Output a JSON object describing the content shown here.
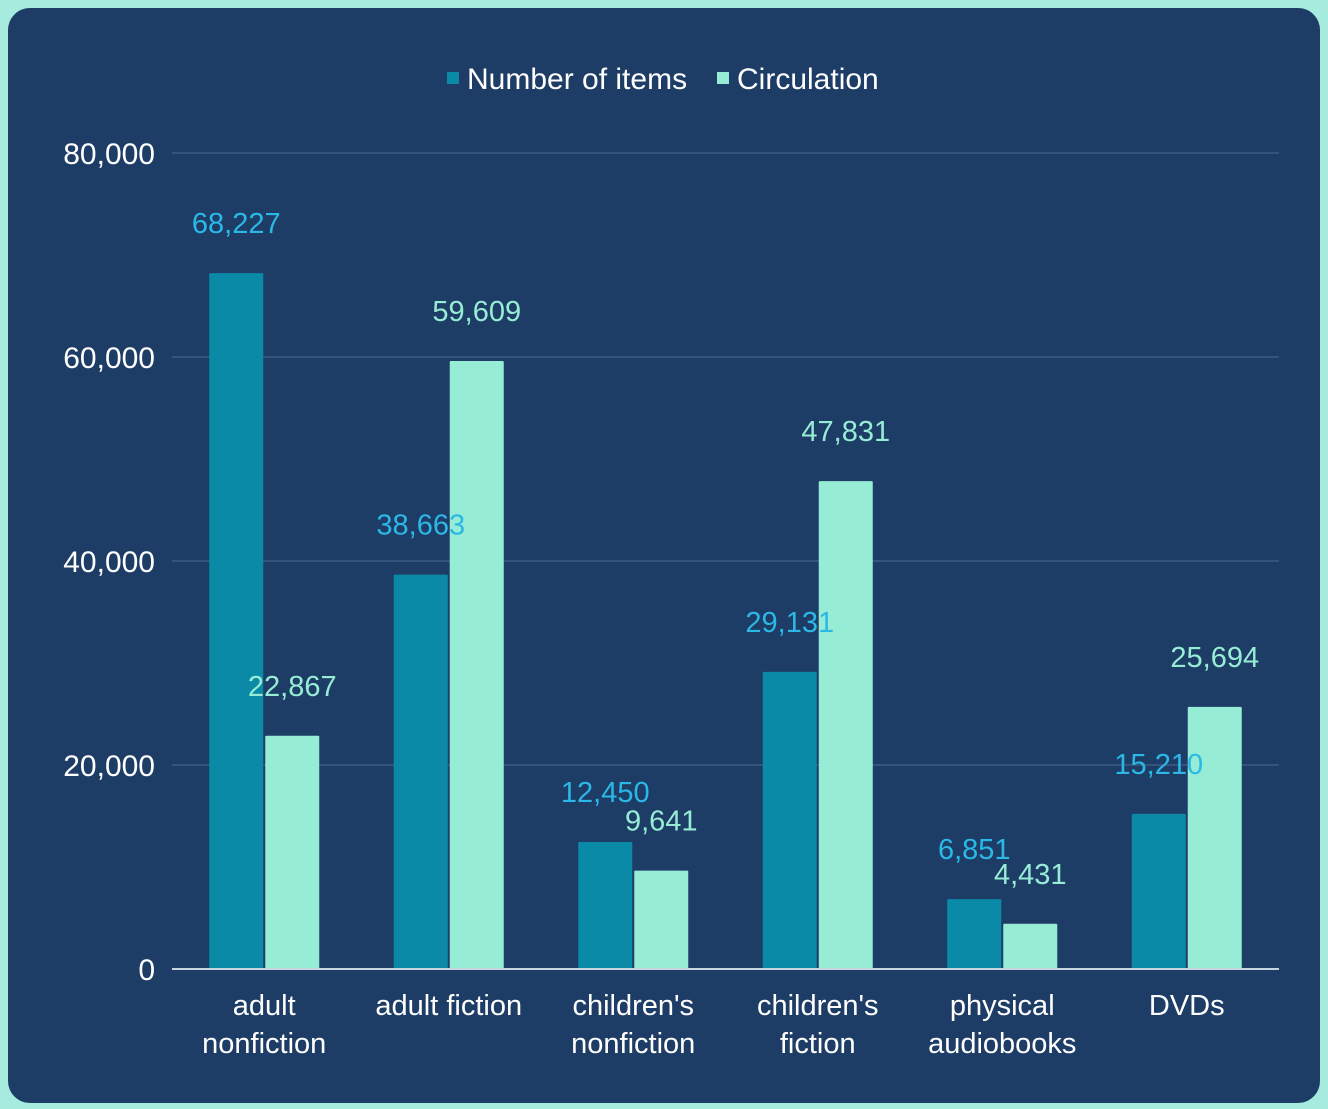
{
  "colors": {
    "background": "#1e3d66",
    "number_of_items": "#0b8aa8",
    "circulation": "#97ecd5",
    "number_of_items_label": "#2bb8e6",
    "circulation_label": "#97ecd5",
    "gridline": "#4a6a90",
    "axis": "#c8d4e0"
  },
  "chart_data": {
    "type": "bar",
    "title": "",
    "xlabel": "",
    "ylabel": "",
    "ylim": [
      0,
      80000
    ],
    "yticks": [
      "0",
      "20,000",
      "40,000",
      "60,000",
      "80,000"
    ],
    "grid": true,
    "legend_position": "top-center",
    "categories": [
      [
        "adult",
        "nonfiction"
      ],
      [
        "adult fiction"
      ],
      [
        "children's",
        "nonfiction"
      ],
      [
        "children's",
        "fiction"
      ],
      [
        "physical",
        "audiobooks"
      ],
      [
        "DVDs"
      ]
    ],
    "series": [
      {
        "name": "Number of items",
        "values": [
          68227,
          38663,
          12450,
          29131,
          6851,
          15210
        ],
        "labels": [
          "68,227",
          "38,663",
          "12,450",
          "29,131",
          "6,851",
          "15,210"
        ]
      },
      {
        "name": "Circulation",
        "values": [
          22867,
          59609,
          9641,
          47831,
          4431,
          25694
        ],
        "labels": [
          "22,867",
          "59,609",
          "9,641",
          "47,831",
          "4,431",
          "25,694"
        ]
      }
    ]
  }
}
